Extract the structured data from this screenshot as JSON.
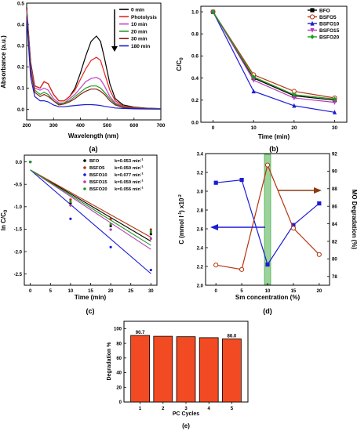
{
  "chart_data": [
    {
      "panel": "(a)",
      "type": "line",
      "xlabel": "Wavelength (nm)",
      "ylabel": "Absorbance (a.u.)",
      "xlim": [
        200,
        700
      ],
      "ylim": [
        -0.05,
        0.5
      ],
      "xticks": [
        "200",
        "300",
        "400",
        "500",
        "600",
        "700"
      ],
      "yticks": [
        "0.0",
        "0.1",
        "0.2",
        "0.3",
        "0.4",
        "0.5"
      ],
      "legend_position": "top-right",
      "legend_arrow": "down",
      "series": [
        {
          "name": "0 min",
          "color": "#000000",
          "x": [
            200,
            215,
            230,
            250,
            265,
            280,
            300,
            320,
            340,
            360,
            380,
            400,
            420,
            440,
            460,
            475,
            490,
            510,
            530,
            560,
            600,
            650,
            700
          ],
          "y": [
            0.48,
            0.22,
            0.11,
            0.1,
            0.13,
            0.12,
            0.07,
            0.04,
            0.04,
            0.06,
            0.1,
            0.17,
            0.25,
            0.32,
            0.345,
            0.32,
            0.24,
            0.12,
            0.05,
            0.02,
            0.01,
            0.005,
            0.003
          ]
        },
        {
          "name": "Photolysis",
          "color": "#e8211a",
          "x": [
            200,
            215,
            230,
            250,
            265,
            280,
            300,
            320,
            340,
            360,
            380,
            400,
            420,
            440,
            460,
            475,
            490,
            510,
            530,
            560,
            600,
            650,
            700
          ],
          "y": [
            0.47,
            0.21,
            0.11,
            0.1,
            0.13,
            0.12,
            0.07,
            0.04,
            0.04,
            0.06,
            0.09,
            0.14,
            0.19,
            0.23,
            0.245,
            0.23,
            0.17,
            0.09,
            0.04,
            0.015,
            0.008,
            0.004,
            0.002
          ]
        },
        {
          "name": "10 min",
          "color": "#c43fc4",
          "x": [
            200,
            215,
            230,
            250,
            265,
            280,
            300,
            320,
            340,
            360,
            380,
            400,
            420,
            440,
            460,
            475,
            490,
            510,
            530,
            560,
            600,
            650,
            700
          ],
          "y": [
            0.46,
            0.2,
            0.1,
            0.09,
            0.1,
            0.09,
            0.05,
            0.03,
            0.03,
            0.05,
            0.07,
            0.1,
            0.13,
            0.145,
            0.15,
            0.14,
            0.11,
            0.06,
            0.03,
            0.012,
            0.006,
            0.003,
            0.002
          ]
        },
        {
          "name": "20 min",
          "color": "#1f9c1f",
          "x": [
            200,
            215,
            230,
            250,
            265,
            280,
            300,
            320,
            340,
            360,
            380,
            400,
            420,
            440,
            460,
            475,
            490,
            510,
            530,
            560,
            600,
            650,
            700
          ],
          "y": [
            0.45,
            0.19,
            0.09,
            0.07,
            0.08,
            0.07,
            0.04,
            0.025,
            0.03,
            0.04,
            0.06,
            0.08,
            0.1,
            0.11,
            0.11,
            0.1,
            0.08,
            0.05,
            0.025,
            0.01,
            0.005,
            0.003,
            0.002
          ]
        },
        {
          "name": "30 min",
          "color": "#8b1a1a",
          "x": [
            200,
            215,
            230,
            250,
            265,
            280,
            300,
            320,
            340,
            360,
            380,
            400,
            420,
            440,
            460,
            475,
            490,
            510,
            530,
            560,
            600,
            650,
            700
          ],
          "y": [
            0.44,
            0.18,
            0.08,
            0.06,
            0.07,
            0.06,
            0.04,
            0.02,
            0.025,
            0.035,
            0.05,
            0.07,
            0.085,
            0.095,
            0.095,
            0.085,
            0.07,
            0.04,
            0.02,
            0.008,
            0.004,
            0.002,
            0.001
          ]
        },
        {
          "name": "180 min",
          "color": "#1c1cd4",
          "x": [
            200,
            215,
            230,
            250,
            265,
            280,
            300,
            320,
            340,
            360,
            380,
            400,
            420,
            440,
            460,
            475,
            490,
            510,
            530,
            560,
            600,
            650,
            700
          ],
          "y": [
            0.43,
            0.15,
            0.06,
            0.04,
            0.04,
            0.035,
            0.02,
            0.012,
            0.012,
            0.015,
            0.018,
            0.02,
            0.022,
            0.022,
            0.02,
            0.018,
            0.014,
            0.01,
            0.006,
            0.004,
            0.002,
            0.001,
            0.001
          ]
        }
      ]
    },
    {
      "panel": "(b)",
      "type": "line",
      "xlabel": "Time (min)",
      "ylabel": "C/C0",
      "xlim": [
        -3,
        33
      ],
      "ylim": [
        0.0,
        1.05
      ],
      "xticks": [
        "0",
        "10",
        "20",
        "30"
      ],
      "xtick_values": [
        0,
        10,
        20,
        30
      ],
      "yticks": [
        "0.0",
        "0.2",
        "0.4",
        "0.6",
        "0.8",
        "1.0"
      ],
      "legend_position": "top-right",
      "x": [
        0,
        10,
        20,
        30
      ],
      "series": [
        {
          "name": "BFO",
          "color": "#000000",
          "marker": "square",
          "values": [
            1.0,
            0.4,
            0.24,
            0.2
          ]
        },
        {
          "name": "BSFO5",
          "color": "#b8350f",
          "marker": "circle-open",
          "values": [
            1.0,
            0.43,
            0.28,
            0.22
          ]
        },
        {
          "name": "BSFO10",
          "color": "#1c1cd4",
          "marker": "triangle",
          "values": [
            1.0,
            0.28,
            0.15,
            0.09
          ]
        },
        {
          "name": "BSFO15",
          "color": "#b63cb6",
          "marker": "triangle-down",
          "values": [
            1.0,
            0.38,
            0.22,
            0.18
          ]
        },
        {
          "name": "BSFO20",
          "color": "#1f9c1f",
          "marker": "diamond",
          "values": [
            1.0,
            0.41,
            0.25,
            0.21
          ]
        }
      ]
    },
    {
      "panel": "(c)",
      "type": "scatter",
      "xlabel": "Time (min)",
      "ylabel": "ln C/C0",
      "xlim": [
        -1.5,
        31.5
      ],
      "ylim": [
        -2.75,
        0.15
      ],
      "xticks": [
        "0",
        "5",
        "10",
        "15",
        "20",
        "25",
        "30"
      ],
      "yticks": [
        "0.0",
        "-0.5",
        "-1.0",
        "-1.5",
        "-2.0",
        "-2.5"
      ],
      "legend_position": "top-right",
      "x": [
        0,
        10,
        20,
        30
      ],
      "series": [
        {
          "name": "BFO",
          "rate_label": "k=0.053 min",
          "color": "#000000",
          "values": [
            0.0,
            -0.92,
            -1.43,
            -1.61
          ],
          "fit": [
            -0.18,
            -1.77
          ]
        },
        {
          "name": "BSFO5",
          "rate_label": "k=0.050 min",
          "color": "#b8350f",
          "values": [
            0.0,
            -0.84,
            -1.27,
            -1.51
          ],
          "fit": [
            -0.18,
            -1.68
          ]
        },
        {
          "name": "BSFO10",
          "rate_label": "k=0.077 min",
          "color": "#1c1cd4",
          "values": [
            0.0,
            -1.27,
            -1.9,
            -2.41
          ],
          "fit": [
            -0.18,
            -2.49
          ]
        },
        {
          "name": "BSFO15",
          "rate_label": "k=0.059 min",
          "color": "#b63cb6",
          "values": [
            0.0,
            -0.97,
            -1.51,
            -1.71
          ],
          "fit": [
            -0.18,
            -1.95
          ]
        },
        {
          "name": "BSFO20",
          "rate_label": "k=0.056 min",
          "color": "#1f9c1f",
          "values": [
            0.0,
            -0.89,
            -1.39,
            -1.56
          ],
          "fit": [
            -0.18,
            -1.86
          ]
        }
      ]
    },
    {
      "panel": "(d)",
      "type": "line",
      "xlabel": "Sm concentration (%)",
      "ylabel": "C (mmol l",
      "ylabel_tail": ") x10",
      "y2label": "MO Degradation (%)",
      "xlim": [
        -2,
        22
      ],
      "ylim": [
        2.0,
        3.4
      ],
      "y2lim": [
        77,
        92
      ],
      "xticks": [
        "0",
        "5",
        "10",
        "15",
        "20"
      ],
      "yticks": [
        "2.0",
        "2.2",
        "2.4",
        "2.6",
        "2.8",
        "3.0",
        "3.2",
        "3.4"
      ],
      "y2ticks": [
        "78",
        "80",
        "82",
        "84",
        "86",
        "88",
        "90",
        "92"
      ],
      "highlight_x": 10,
      "x": [
        0,
        5,
        10,
        15,
        20
      ],
      "series": [
        {
          "name": "C",
          "axis": "left",
          "color": "#1c1cd4",
          "marker": "square",
          "values": [
            3.09,
            3.12,
            2.22,
            2.64,
            2.87
          ]
        },
        {
          "name": "MO Degradation",
          "axis": "right",
          "color": "#b8350f",
          "marker": "circle-open",
          "values": [
            79.3,
            78.8,
            90.7,
            83.5,
            80.5
          ]
        }
      ]
    },
    {
      "panel": "(e)",
      "type": "bar",
      "xlabel": "PC Cycles",
      "ylabel": "Degradation %",
      "categories": [
        "1",
        "2",
        "3",
        "4",
        "5"
      ],
      "values": [
        90.7,
        89.6,
        89.0,
        87.7,
        86.0
      ],
      "value_labels": [
        "90.7",
        "",
        "",
        "",
        "86.0"
      ],
      "ylim": [
        0,
        110
      ],
      "yticks": [
        "0",
        "20",
        "40",
        "60",
        "80",
        "100"
      ],
      "bar_color": "#f24a22"
    }
  ]
}
